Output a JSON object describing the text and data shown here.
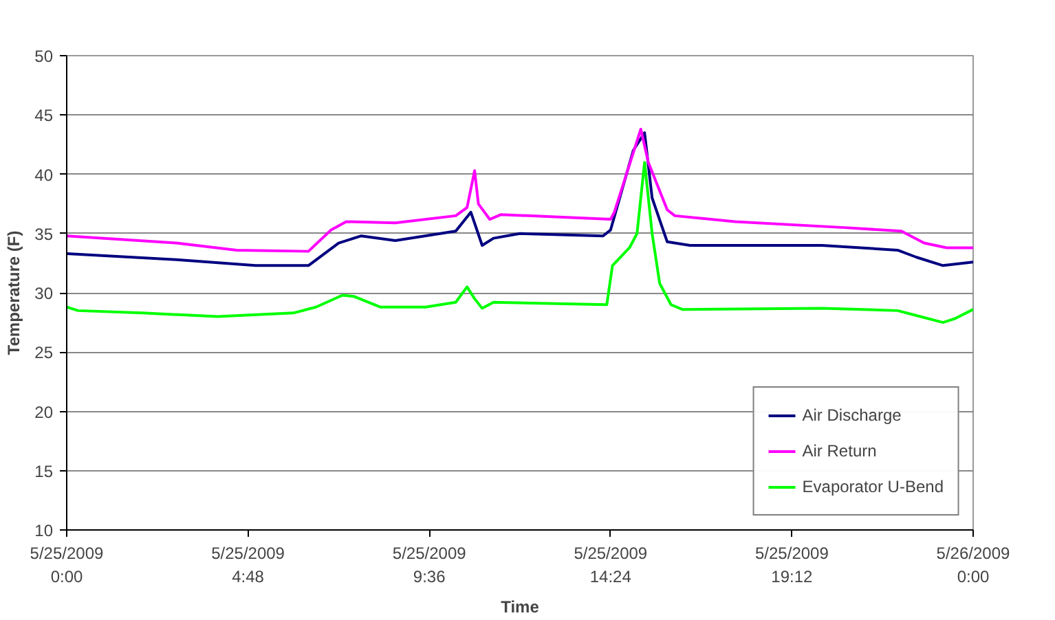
{
  "chart_data": {
    "type": "line",
    "xlabel": "Time",
    "ylabel": "Temperature (F)",
    "xlim": [
      "2009-05-25T00:00",
      "2009-05-26T00:00"
    ],
    "ylim": [
      10,
      50
    ],
    "xticks": [
      {
        "value": "2009-05-25T00:00",
        "label": "5/25/2009\n0:00"
      },
      {
        "value": "2009-05-25T04:48",
        "label": "5/25/2009\n4:48"
      },
      {
        "value": "2009-05-25T09:36",
        "label": "5/25/2009\n9:36"
      },
      {
        "value": "2009-05-25T14:24",
        "label": "5/25/2009\n14:24"
      },
      {
        "value": "2009-05-25T19:12",
        "label": "5/25/2009\n19:12"
      },
      {
        "value": "2009-05-26T00:00",
        "label": "5/26/2009\n0:00"
      }
    ],
    "yticks": [
      10,
      15,
      20,
      25,
      30,
      35,
      40,
      45,
      50
    ],
    "grid": "y",
    "legend": "bottom right",
    "marker": "none",
    "line_style": "solid",
    "series": [
      {
        "name": "Air Discharge",
        "color": "#000080",
        "x": [
          "2009-05-25T00:00",
          "2009-05-25T02:54",
          "2009-05-25T05:00",
          "2009-05-25T06:24",
          "2009-05-25T07:12",
          "2009-05-25T07:48",
          "2009-05-25T08:42",
          "2009-05-25T10:18",
          "2009-05-25T10:42",
          "2009-05-25T11:00",
          "2009-05-25T11:18",
          "2009-05-25T12:00",
          "2009-05-25T14:12",
          "2009-05-25T14:24",
          "2009-05-25T15:00",
          "2009-05-25T15:18",
          "2009-05-25T15:30",
          "2009-05-25T15:54",
          "2009-05-25T16:30",
          "2009-05-25T20:00",
          "2009-05-25T22:00",
          "2009-05-25T22:30",
          "2009-05-25T23:12",
          "2009-05-26T00:00"
        ],
        "values": [
          33.3,
          32.8,
          32.3,
          32.3,
          34.2,
          34.8,
          34.4,
          35.2,
          36.8,
          34.0,
          34.6,
          35,
          34.8,
          35.3,
          42,
          43.5,
          38,
          34.3,
          34.0,
          34,
          33.6,
          33,
          32.3,
          32.6
        ]
      },
      {
        "name": "Air Return",
        "color": "#ff00ff",
        "x": [
          "2009-05-25T00:00",
          "2009-05-25T02:54",
          "2009-05-25T04:30",
          "2009-05-25T06:24",
          "2009-05-25T07:00",
          "2009-05-25T07:24",
          "2009-05-25T08:42",
          "2009-05-25T10:18",
          "2009-05-25T10:36",
          "2009-05-25T10:48",
          "2009-05-25T10:54",
          "2009-05-25T11:12",
          "2009-05-25T11:30",
          "2009-05-25T14:24",
          "2009-05-25T14:30",
          "2009-05-25T15:12",
          "2009-05-25T15:24",
          "2009-05-25T15:54",
          "2009-05-25T16:06",
          "2009-05-25T17:42",
          "2009-05-25T20:36",
          "2009-05-25T22:06",
          "2009-05-25T22:42",
          "2009-05-25T23:18",
          "2009-05-26T00:00"
        ],
        "values": [
          34.8,
          34.2,
          33.6,
          33.5,
          35.3,
          36.0,
          35.9,
          36.5,
          37.2,
          40.3,
          37.5,
          36.2,
          36.6,
          36.2,
          36.8,
          43.8,
          41,
          37,
          36.5,
          36,
          35.5,
          35.2,
          34.2,
          33.8,
          33.8
        ]
      },
      {
        "name": "Evaporator U-Bend",
        "color": "#00ff00",
        "x": [
          "2009-05-25T00:00",
          "2009-05-25T00:18",
          "2009-05-25T02:00",
          "2009-05-25T04:00",
          "2009-05-25T06:00",
          "2009-05-25T06:36",
          "2009-05-25T07:18",
          "2009-05-25T07:36",
          "2009-05-25T08:18",
          "2009-05-25T09:30",
          "2009-05-25T10:18",
          "2009-05-25T10:36",
          "2009-05-25T10:48",
          "2009-05-25T11:00",
          "2009-05-25T11:18",
          "2009-05-25T14:18",
          "2009-05-25T14:27",
          "2009-05-25T14:54",
          "2009-05-25T15:06",
          "2009-05-25T15:18",
          "2009-05-25T15:30",
          "2009-05-25T15:42",
          "2009-05-25T16:00",
          "2009-05-25T16:18",
          "2009-05-25T20:00",
          "2009-05-25T22:00",
          "2009-05-25T22:36",
          "2009-05-25T23:12",
          "2009-05-25T23:30",
          "2009-05-26T00:00"
        ],
        "values": [
          28.8,
          28.5,
          28.3,
          28.0,
          28.3,
          28.8,
          29.8,
          29.7,
          28.8,
          28.8,
          29.2,
          30.5,
          29.5,
          28.7,
          29.2,
          29.0,
          32.3,
          33.8,
          35,
          41,
          35,
          30.8,
          29,
          28.6,
          28.7,
          28.5,
          28,
          27.5,
          27.8,
          28.6
        ]
      }
    ]
  }
}
